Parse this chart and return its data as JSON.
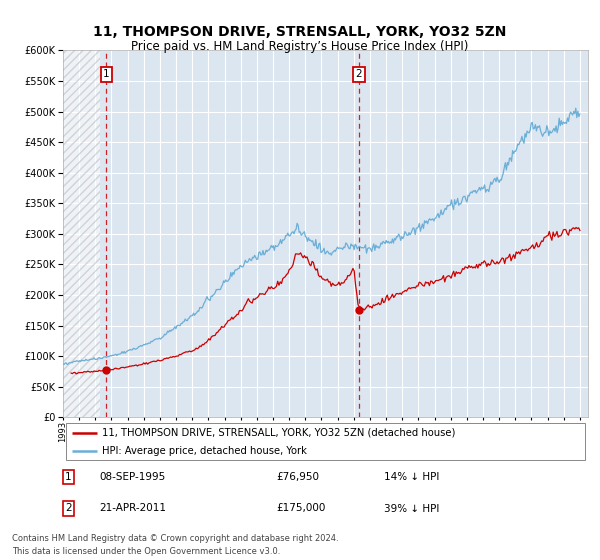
{
  "title": "11, THOMPSON DRIVE, STRENSALL, YORK, YO32 5ZN",
  "subtitle": "Price paid vs. HM Land Registry’s House Price Index (HPI)",
  "legend_line1": "11, THOMPSON DRIVE, STRENSALL, YORK, YO32 5ZN (detached house)",
  "legend_line2": "HPI: Average price, detached house, York",
  "footer_line1": "Contains HM Land Registry data © Crown copyright and database right 2024.",
  "footer_line2": "This data is licensed under the Open Government Licence v3.0.",
  "point1_label": "1",
  "point1_date": "08-SEP-1995",
  "point1_price": "£76,950",
  "point1_hpi": "14% ↓ HPI",
  "point1_year": 1995.69,
  "point1_value": 76950,
  "point2_label": "2",
  "point2_date": "21-APR-2011",
  "point2_price": "£175,000",
  "point2_hpi": "39% ↓ HPI",
  "point2_year": 2011.3,
  "point2_value": 175000,
  "hpi_color": "#6baed6",
  "price_color": "#cc0000",
  "marker_color": "#cc0000",
  "bg_color": "#dce6f1",
  "grid_color": "#ffffff",
  "ylim": [
    0,
    600000
  ],
  "yticks": [
    0,
    50000,
    100000,
    150000,
    200000,
    250000,
    300000,
    350000,
    400000,
    450000,
    500000,
    550000,
    600000
  ],
  "xmin": 1993,
  "xmax": 2025.5
}
